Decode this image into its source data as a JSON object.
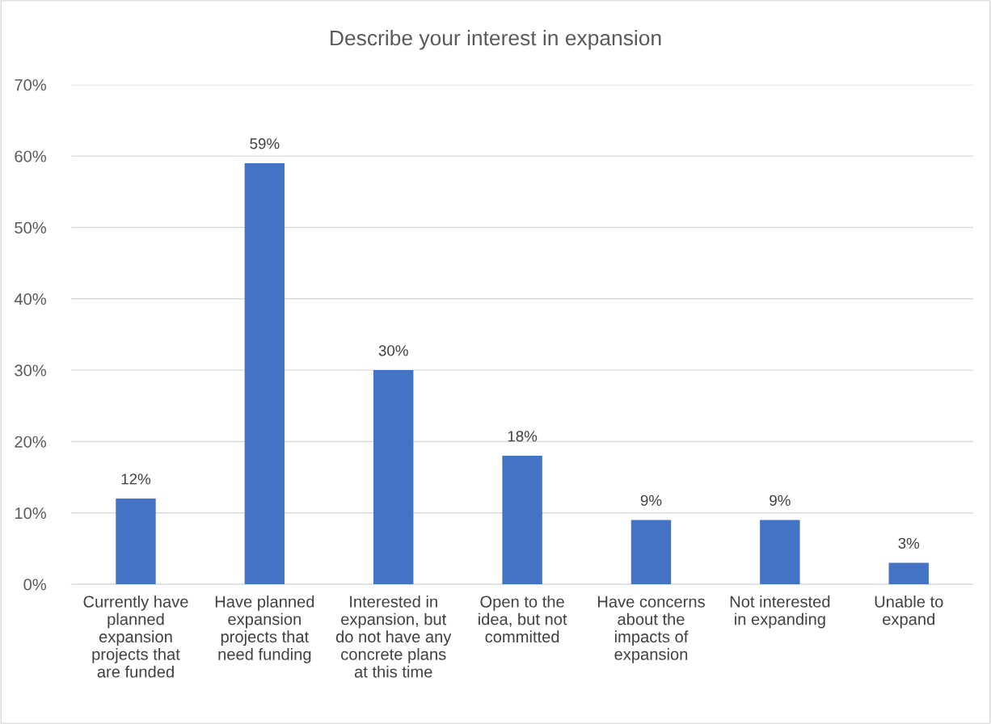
{
  "chart_data": {
    "type": "bar",
    "title": "Describe your interest in expansion",
    "categories": [
      "Currently have planned expansion projects that are funded",
      "Have planned expansion projects that need funding",
      "Interested in expansion, but do not have any concrete plans at this time",
      "Open to the idea, but not committed",
      "Have concerns about the impacts of expansion",
      "Not interested in expanding",
      "Unable to expand"
    ],
    "values": [
      12,
      59,
      30,
      18,
      9,
      9,
      3
    ],
    "value_labels": [
      "12%",
      "59%",
      "30%",
      "18%",
      "9%",
      "9%",
      "3%"
    ],
    "color": "#4472c4",
    "ylim": [
      0,
      70
    ],
    "yticks": [
      {
        "value": 0,
        "label": "0%"
      },
      {
        "value": 10,
        "label": "10%"
      },
      {
        "value": 20,
        "label": "20%"
      },
      {
        "value": 30,
        "label": "30%"
      },
      {
        "value": 40,
        "label": "40%"
      },
      {
        "value": 50,
        "label": "50%"
      },
      {
        "value": 60,
        "label": "60%"
      },
      {
        "value": 70,
        "label": "70%"
      }
    ],
    "grid": "y",
    "legend": false
  }
}
